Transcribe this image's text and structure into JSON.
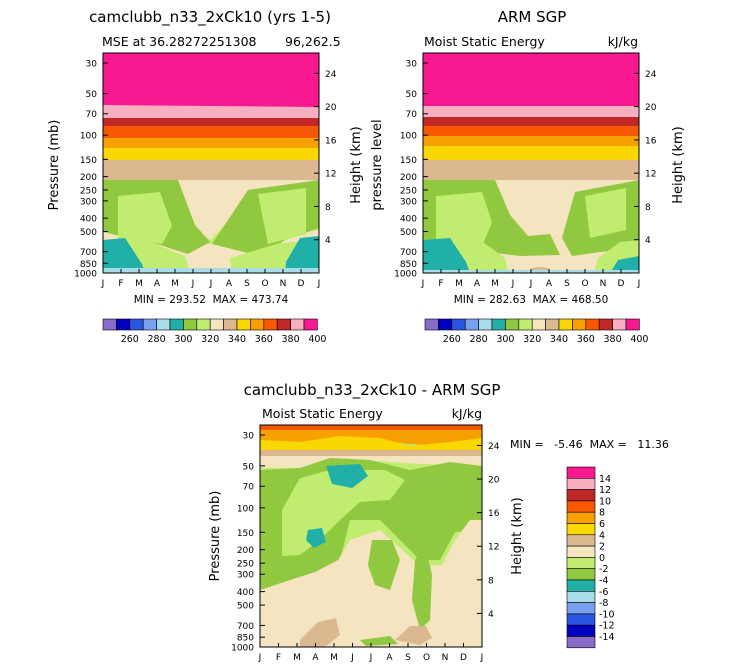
{
  "colors": {
    "abs_levels": [
      "#8a6cc8",
      "#0000c0",
      "#2a55e0",
      "#7aa0f0",
      "#a8dce8",
      "#20b0a8",
      "#90c840",
      "#c0ec70",
      "#f4e4c0",
      "#dcb890",
      "#f8d800",
      "#f8a000",
      "#f85800",
      "#c02828",
      "#f8b0c0",
      "#f81890"
    ],
    "diff_levels": [
      "#8a6cc8",
      "#0000c0",
      "#2a55e0",
      "#7aa0f0",
      "#a8dce8",
      "#20b0a8",
      "#90c840",
      "#c0ec70",
      "#f4e4c0",
      "#dcb890",
      "#f8d800",
      "#f8a000",
      "#f85800",
      "#c02828",
      "#f8b0c0",
      "#f81890"
    ]
  },
  "chart_data": [
    {
      "id": "model",
      "type": "heatmap",
      "title": "camclubb_n33_2xCk10 (yrs 1-5)",
      "subtitle_left": "MSE at 36.28272251308",
      "subtitle_right": "96,262.5",
      "ylabel": "Pressure (mb)",
      "ylabel_right": "Height (km)",
      "months": [
        "J",
        "F",
        "M",
        "A",
        "M",
        "J",
        "J",
        "A",
        "S",
        "O",
        "N",
        "D",
        "J"
      ],
      "pressure_ticks": [
        "30",
        "50",
        "70",
        "100",
        "150",
        "200",
        "250",
        "300",
        "400",
        "500",
        "700",
        "850",
        "1000"
      ],
      "height_ticks": [
        "24",
        "20",
        "16",
        "12",
        "8",
        "4"
      ],
      "stats": "MIN = 293.52  MAX = 473.74",
      "stat_min": 293.52,
      "stat_max": 473.74,
      "band_levels_top_to_bottom": [
        15,
        14,
        13,
        12,
        11,
        10,
        9
      ],
      "region_fill_levels": {
        "upper_green": 7,
        "mid_light": 8,
        "low_green": 6,
        "teal": 5,
        "light_blue": 4,
        "tan": 9
      }
    },
    {
      "id": "obs",
      "type": "heatmap",
      "title": "ARM SGP",
      "subtitle_left": "Moist Static Energy",
      "subtitle_right": "kJ/kg",
      "ylabel": "pressure level",
      "ylabel_right": "Height (km)",
      "months": [
        "J",
        "F",
        "M",
        "A",
        "M",
        "J",
        "J",
        "A",
        "S",
        "O",
        "N",
        "D",
        "J"
      ],
      "pressure_ticks": [
        "30",
        "50",
        "70",
        "100",
        "150",
        "200",
        "250",
        "300",
        "400",
        "500",
        "700",
        "850",
        "1000"
      ],
      "height_ticks": [
        "24",
        "20",
        "16",
        "12",
        "8",
        "4"
      ],
      "stats": "MIN = 282.63  MAX = 468.50",
      "stat_min": 282.63,
      "stat_max": 468.5
    },
    {
      "id": "diff",
      "type": "heatmap",
      "title": "camclubb_n33_2xCk10 - ARM SGP",
      "subtitle_left": "Moist Static Energy",
      "subtitle_right": "kJ/kg",
      "ylabel": "Pressure (mb)",
      "ylabel_right": "Height (km)",
      "months": [
        "J",
        "F",
        "M",
        "A",
        "M",
        "J",
        "J",
        "A",
        "S",
        "O",
        "N",
        "D",
        "J"
      ],
      "pressure_ticks": [
        "30",
        "50",
        "70",
        "100",
        "150",
        "200",
        "250",
        "300",
        "400",
        "500",
        "700",
        "850",
        "1000"
      ],
      "height_ticks": [
        "24",
        "20",
        "16",
        "12",
        "8",
        "4"
      ],
      "stats": "MIN =   -5.46  MAX =   11.36",
      "stat_min": -5.46,
      "stat_max": 11.36
    }
  ],
  "abs_colorbar": {
    "labels": [
      "260",
      "280",
      "300",
      "320",
      "340",
      "360",
      "380",
      "400"
    ],
    "levels": [
      250,
      260,
      270,
      280,
      290,
      300,
      310,
      320,
      330,
      340,
      350,
      360,
      370,
      380,
      390,
      400
    ]
  },
  "diff_colorbar": {
    "labels": [
      "14",
      "12",
      "10",
      "8",
      "6",
      "4",
      "2",
      "0",
      "-2",
      "-4",
      "-6",
      "-8",
      "-10",
      "-12",
      "-14"
    ],
    "levels": [
      -16,
      -14,
      -12,
      -10,
      -8,
      -6,
      -4,
      -2,
      0,
      2,
      4,
      6,
      8,
      10,
      12,
      14
    ]
  }
}
